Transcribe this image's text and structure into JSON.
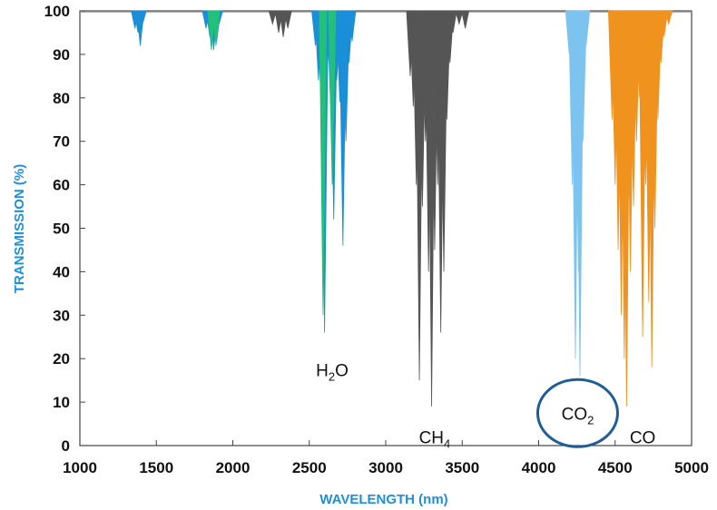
{
  "chart_data": {
    "type": "line",
    "title": "",
    "xlabel": "WAVELENGTH (nm)",
    "ylabel": "TRANSMISSION (%)",
    "xlim": [
      1000,
      5000
    ],
    "ylim": [
      0,
      100
    ],
    "xticks": [
      1000,
      1500,
      2000,
      2500,
      3000,
      3500,
      4000,
      4500,
      5000
    ],
    "yticks": [
      0,
      10,
      20,
      30,
      40,
      50,
      60,
      70,
      80,
      90,
      100
    ],
    "grid": false,
    "legend": "none",
    "label_color": "#1e90d6",
    "series": [
      {
        "color": "#1a8fd8",
        "lines": [
          {
            "x": 1360,
            "min": 96
          },
          {
            "x": 1380,
            "min": 95
          },
          {
            "x": 1395,
            "min": 92
          },
          {
            "x": 1410,
            "min": 97
          },
          {
            "x": 1825,
            "min": 96
          },
          {
            "x": 1850,
            "min": 94
          },
          {
            "x": 1875,
            "min": 91
          },
          {
            "x": 1895,
            "min": 93
          },
          {
            "x": 1910,
            "min": 97
          },
          {
            "x": 2540,
            "min": 92
          },
          {
            "x": 2560,
            "min": 84
          },
          {
            "x": 2580,
            "min": 75
          },
          {
            "x": 2600,
            "min": 26
          },
          {
            "x": 2620,
            "min": 88
          },
          {
            "x": 2640,
            "min": 78
          },
          {
            "x": 2660,
            "min": 52
          },
          {
            "x": 2680,
            "min": 84
          },
          {
            "x": 2700,
            "min": 79
          },
          {
            "x": 2720,
            "min": 46
          },
          {
            "x": 2740,
            "min": 70
          },
          {
            "x": 2760,
            "min": 88
          },
          {
            "x": 2780,
            "min": 93
          }
        ]
      },
      {
        "color": "#22c07a",
        "lines": [
          {
            "x": 1860,
            "min": 91
          },
          {
            "x": 1890,
            "min": 92
          },
          {
            "x": 2590,
            "min": 30
          },
          {
            "x": 2650,
            "min": 60
          }
        ]
      },
      {
        "color": "#555555",
        "lines": [
          {
            "x": 2260,
            "min": 97
          },
          {
            "x": 2300,
            "min": 95
          },
          {
            "x": 2330,
            "min": 94
          },
          {
            "x": 2360,
            "min": 96
          },
          {
            "x": 3160,
            "min": 85
          },
          {
            "x": 3180,
            "min": 78
          },
          {
            "x": 3200,
            "min": 60
          },
          {
            "x": 3220,
            "min": 15
          },
          {
            "x": 3240,
            "min": 55
          },
          {
            "x": 3260,
            "min": 70
          },
          {
            "x": 3280,
            "min": 40
          },
          {
            "x": 3300,
            "min": 9
          },
          {
            "x": 3320,
            "min": 45
          },
          {
            "x": 3340,
            "min": 60
          },
          {
            "x": 3360,
            "min": 26
          },
          {
            "x": 3380,
            "min": 40
          },
          {
            "x": 3400,
            "min": 75
          },
          {
            "x": 3420,
            "min": 88
          },
          {
            "x": 3440,
            "min": 95
          },
          {
            "x": 3480,
            "min": 97
          },
          {
            "x": 3520,
            "min": 96
          }
        ]
      },
      {
        "color": "#7cc4ef",
        "lines": [
          {
            "x": 4200,
            "min": 90
          },
          {
            "x": 4220,
            "min": 60
          },
          {
            "x": 4240,
            "min": 20
          },
          {
            "x": 4260,
            "min": 40
          },
          {
            "x": 4270,
            "min": 16
          },
          {
            "x": 4290,
            "min": 70
          },
          {
            "x": 4310,
            "min": 92
          }
        ]
      },
      {
        "color": "#f0921e",
        "lines": [
          {
            "x": 4480,
            "min": 75
          },
          {
            "x": 4500,
            "min": 60
          },
          {
            "x": 4520,
            "min": 45
          },
          {
            "x": 4540,
            "min": 30
          },
          {
            "x": 4560,
            "min": 20
          },
          {
            "x": 4575,
            "min": 9
          },
          {
            "x": 4600,
            "min": 40
          },
          {
            "x": 4620,
            "min": 55
          },
          {
            "x": 4640,
            "min": 70
          },
          {
            "x": 4660,
            "min": 80
          },
          {
            "x": 4680,
            "min": 25
          },
          {
            "x": 4700,
            "min": 60
          },
          {
            "x": 4720,
            "min": 33
          },
          {
            "x": 4740,
            "min": 18
          },
          {
            "x": 4760,
            "min": 50
          },
          {
            "x": 4780,
            "min": 75
          },
          {
            "x": 4800,
            "min": 88
          },
          {
            "x": 4820,
            "min": 94
          },
          {
            "x": 4850,
            "min": 97
          }
        ]
      }
    ],
    "annotations": [
      {
        "id": "h2o",
        "base": "H",
        "sub": "2",
        "tail": "O",
        "x": 2650,
        "y": 16
      },
      {
        "id": "ch4",
        "base": "CH",
        "sub": "4",
        "tail": "",
        "x": 3320,
        "y": 0.5
      },
      {
        "id": "co2",
        "base": "CO",
        "sub": "2",
        "tail": "",
        "x": 4255,
        "y": 6,
        "circled": true
      },
      {
        "id": "co",
        "base": "CO",
        "sub": "",
        "tail": "",
        "x": 4680,
        "y": 0.5
      }
    ]
  }
}
